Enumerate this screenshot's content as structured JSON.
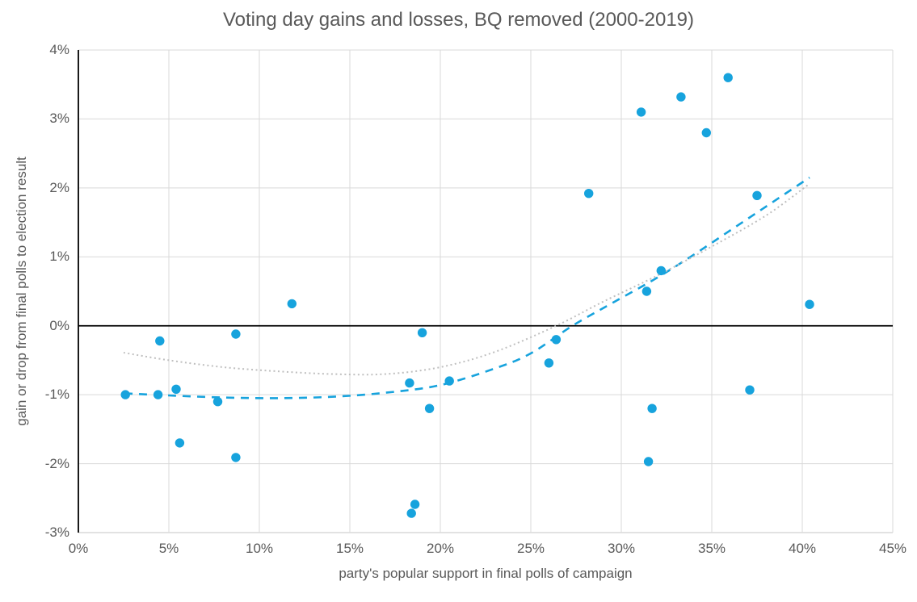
{
  "chart_data": {
    "type": "scatter",
    "title": "Voting day gains and losses, BQ removed (2000-2019)",
    "xlabel": "party's popular support in final polls of campaign",
    "ylabel": "gain or drop from final polls to election result",
    "xlim": [
      0,
      45
    ],
    "ylim": [
      -3,
      4
    ],
    "grid": true,
    "legend": "none",
    "x_tick_labels": [
      "0%",
      "5%",
      "10%",
      "15%",
      "20%",
      "25%",
      "30%",
      "35%",
      "40%",
      "45%"
    ],
    "x_tick_values": [
      0,
      5,
      10,
      15,
      20,
      25,
      30,
      35,
      40,
      45
    ],
    "y_tick_labels": [
      "4%",
      "3%",
      "2%",
      "1%",
      "0%",
      "-1%",
      "-2%",
      "-3%"
    ],
    "y_tick_values": [
      4,
      3,
      2,
      1,
      0,
      -1,
      -2,
      -3
    ],
    "points": [
      [
        2.6,
        -1.0
      ],
      [
        4.5,
        -0.22
      ],
      [
        4.4,
        -1.0
      ],
      [
        5.4,
        -0.92
      ],
      [
        5.6,
        -1.7
      ],
      [
        7.7,
        -1.1
      ],
      [
        8.7,
        -0.12
      ],
      [
        8.7,
        -1.91
      ],
      [
        11.8,
        0.32
      ],
      [
        18.3,
        -0.83
      ],
      [
        18.4,
        -2.72
      ],
      [
        18.6,
        -2.59
      ],
      [
        19.0,
        -0.1
      ],
      [
        19.4,
        -1.2
      ],
      [
        20.5,
        -0.8
      ],
      [
        26.0,
        -0.54
      ],
      [
        26.4,
        -0.2
      ],
      [
        28.2,
        1.92
      ],
      [
        31.1,
        3.1
      ],
      [
        31.4,
        0.5
      ],
      [
        31.5,
        -1.97
      ],
      [
        31.7,
        -1.2
      ],
      [
        32.2,
        0.8
      ],
      [
        33.3,
        3.32
      ],
      [
        34.7,
        2.8
      ],
      [
        35.9,
        3.6
      ],
      [
        37.1,
        -0.93
      ],
      [
        37.5,
        1.89
      ],
      [
        40.4,
        0.31
      ]
    ],
    "trendlines": [
      {
        "name": "polynomial fit, BQ removed (dashed)",
        "style": "dashed",
        "color": "#17A3DD",
        "points": [
          [
            2.55,
            -0.98
          ],
          [
            5,
            -1.01
          ],
          [
            8,
            -1.04
          ],
          [
            11,
            -1.05
          ],
          [
            14,
            -1.03
          ],
          [
            17,
            -0.97
          ],
          [
            20,
            -0.86
          ],
          [
            23,
            -0.62
          ],
          [
            25,
            -0.4
          ],
          [
            27.3,
            0.0
          ],
          [
            29.5,
            0.33
          ],
          [
            32,
            0.7
          ],
          [
            34,
            1.03
          ],
          [
            36,
            1.38
          ],
          [
            38,
            1.73
          ],
          [
            40.4,
            2.15
          ]
        ]
      },
      {
        "name": "reference polynomial fit (dotted)",
        "style": "dotted",
        "color": "#BFBFBF",
        "points": [
          [
            2.5,
            -0.39
          ],
          [
            5,
            -0.5
          ],
          [
            8,
            -0.6
          ],
          [
            11,
            -0.66
          ],
          [
            14,
            -0.7
          ],
          [
            17,
            -0.7
          ],
          [
            20,
            -0.6
          ],
          [
            23,
            -0.38
          ],
          [
            26.4,
            0.0
          ],
          [
            29,
            0.35
          ],
          [
            32,
            0.73
          ],
          [
            35,
            1.15
          ],
          [
            38,
            1.6
          ],
          [
            40.4,
            2.06
          ]
        ]
      }
    ],
    "colors": {
      "marker": "#17A3DD",
      "gridline": "#D9D9D9",
      "bottom_axis_line": "#C6C6C6",
      "zero_line": "#000000",
      "y_axis_line": "#000000",
      "text": "#595959",
      "background": "#FFFFFF"
    }
  }
}
